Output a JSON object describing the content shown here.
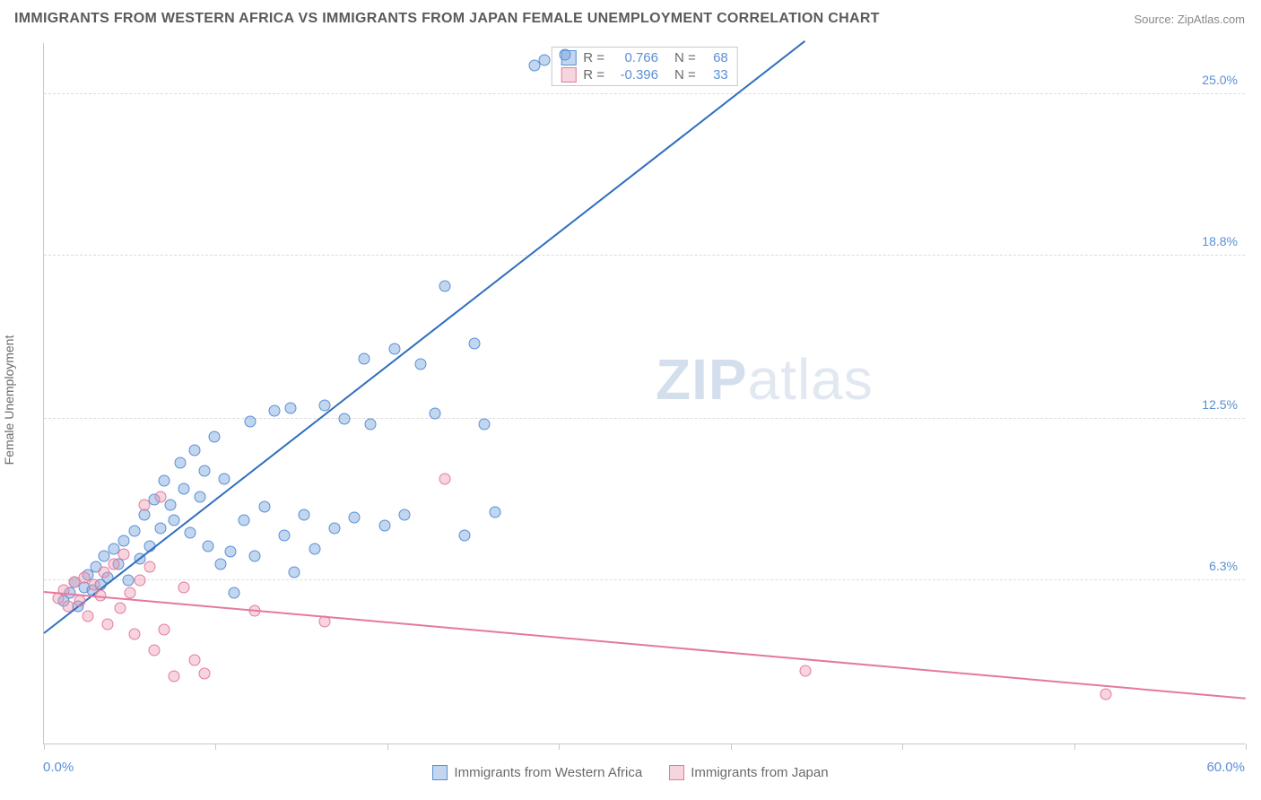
{
  "title": "IMMIGRANTS FROM WESTERN AFRICA VS IMMIGRANTS FROM JAPAN FEMALE UNEMPLOYMENT CORRELATION CHART",
  "source": "Source: ZipAtlas.com",
  "ylabel": "Female Unemployment",
  "watermark_zip": "ZIP",
  "watermark_atlas": "atlas",
  "chart": {
    "type": "scatter",
    "background_color": "#ffffff",
    "grid_color": "#dcdcdc",
    "axis_color": "#c9c9c9",
    "xlim": [
      0,
      60
    ],
    "ylim": [
      0,
      27
    ],
    "xticks": [
      0,
      8.57,
      17.14,
      25.71,
      34.29,
      42.86,
      51.43,
      60
    ],
    "yticks": [
      6.3,
      12.5,
      18.8,
      25.0
    ],
    "ytick_labels": [
      "6.3%",
      "12.5%",
      "18.8%",
      "25.0%"
    ],
    "xmin_label": "0.0%",
    "xmax_label": "60.0%",
    "tick_label_color": "#5a8fd6",
    "tick_label_fontsize": 14,
    "title_fontsize": 16,
    "title_color": "#5a5a5a"
  },
  "series": [
    {
      "name": "Immigrants from Western Africa",
      "marker_fill": "rgba(120,165,220,0.45)",
      "marker_stroke": "#5a8fd6",
      "line_color": "#2f6dc0",
      "line_width": 2,
      "R": "0.766",
      "N": "68",
      "trend": {
        "x1": 0,
        "y1": 4.2,
        "x2": 38,
        "y2": 27
      },
      "points": [
        [
          1,
          5.5
        ],
        [
          1.3,
          5.8
        ],
        [
          1.5,
          6.2
        ],
        [
          1.7,
          5.3
        ],
        [
          2,
          6
        ],
        [
          2.2,
          6.5
        ],
        [
          2.4,
          5.9
        ],
        [
          2.6,
          6.8
        ],
        [
          2.8,
          6.1
        ],
        [
          3,
          7.2
        ],
        [
          3.2,
          6.4
        ],
        [
          3.5,
          7.5
        ],
        [
          3.7,
          6.9
        ],
        [
          4,
          7.8
        ],
        [
          4.2,
          6.3
        ],
        [
          4.5,
          8.2
        ],
        [
          4.8,
          7.1
        ],
        [
          5,
          8.8
        ],
        [
          5.3,
          7.6
        ],
        [
          5.5,
          9.4
        ],
        [
          5.8,
          8.3
        ],
        [
          6,
          10.1
        ],
        [
          6.3,
          9.2
        ],
        [
          6.5,
          8.6
        ],
        [
          6.8,
          10.8
        ],
        [
          7,
          9.8
        ],
        [
          7.3,
          8.1
        ],
        [
          7.5,
          11.3
        ],
        [
          7.8,
          9.5
        ],
        [
          8,
          10.5
        ],
        [
          8.2,
          7.6
        ],
        [
          8.5,
          11.8
        ],
        [
          8.8,
          6.9
        ],
        [
          9,
          10.2
        ],
        [
          9.3,
          7.4
        ],
        [
          9.5,
          5.8
        ],
        [
          10,
          8.6
        ],
        [
          10.3,
          12.4
        ],
        [
          10.5,
          7.2
        ],
        [
          11,
          9.1
        ],
        [
          11.5,
          12.8
        ],
        [
          12,
          8.0
        ],
        [
          12.3,
          12.9
        ],
        [
          12.5,
          6.6
        ],
        [
          13,
          8.8
        ],
        [
          13.5,
          7.5
        ],
        [
          14,
          13.0
        ],
        [
          14.5,
          8.3
        ],
        [
          15,
          12.5
        ],
        [
          15.5,
          8.7
        ],
        [
          16,
          14.8
        ],
        [
          16.3,
          12.3
        ],
        [
          17,
          8.4
        ],
        [
          17.5,
          15.2
        ],
        [
          18,
          8.8
        ],
        [
          18.8,
          14.6
        ],
        [
          19.5,
          12.7
        ],
        [
          20,
          17.6
        ],
        [
          21,
          8.0
        ],
        [
          21.5,
          15.4
        ],
        [
          22,
          12.3
        ],
        [
          22.5,
          8.9
        ],
        [
          24.5,
          26.1
        ],
        [
          25,
          26.3
        ],
        [
          26,
          26.5
        ]
      ]
    },
    {
      "name": "Immigrants from Japan",
      "marker_fill": "rgba(235,150,175,0.40)",
      "marker_stroke": "#e47a9a",
      "line_color": "#e47a9a",
      "line_width": 2,
      "R": "-0.396",
      "N": "33",
      "trend": {
        "x1": 0,
        "y1": 5.8,
        "x2": 60,
        "y2": 1.7
      },
      "points": [
        [
          0.7,
          5.6
        ],
        [
          1,
          5.9
        ],
        [
          1.2,
          5.3
        ],
        [
          1.5,
          6.2
        ],
        [
          1.8,
          5.5
        ],
        [
          2,
          6.4
        ],
        [
          2.2,
          4.9
        ],
        [
          2.5,
          6.1
        ],
        [
          2.8,
          5.7
        ],
        [
          3,
          6.6
        ],
        [
          3.2,
          4.6
        ],
        [
          3.5,
          6.9
        ],
        [
          3.8,
          5.2
        ],
        [
          4,
          7.3
        ],
        [
          4.3,
          5.8
        ],
        [
          4.5,
          4.2
        ],
        [
          4.8,
          6.3
        ],
        [
          5,
          9.2
        ],
        [
          5.3,
          6.8
        ],
        [
          5.5,
          3.6
        ],
        [
          5.8,
          9.5
        ],
        [
          6,
          4.4
        ],
        [
          6.5,
          2.6
        ],
        [
          7,
          6.0
        ],
        [
          7.5,
          3.2
        ],
        [
          8,
          2.7
        ],
        [
          10.5,
          5.1
        ],
        [
          14,
          4.7
        ],
        [
          20,
          10.2
        ],
        [
          38,
          2.8
        ],
        [
          53,
          1.9
        ]
      ]
    }
  ],
  "legend": {
    "label_color": "#6a6a6a",
    "fontsize": 15
  },
  "stats_box": {
    "r_label": "R =",
    "n_label": "N =",
    "border_color": "#c9c9c9",
    "value_color": "#5a8fd6"
  }
}
